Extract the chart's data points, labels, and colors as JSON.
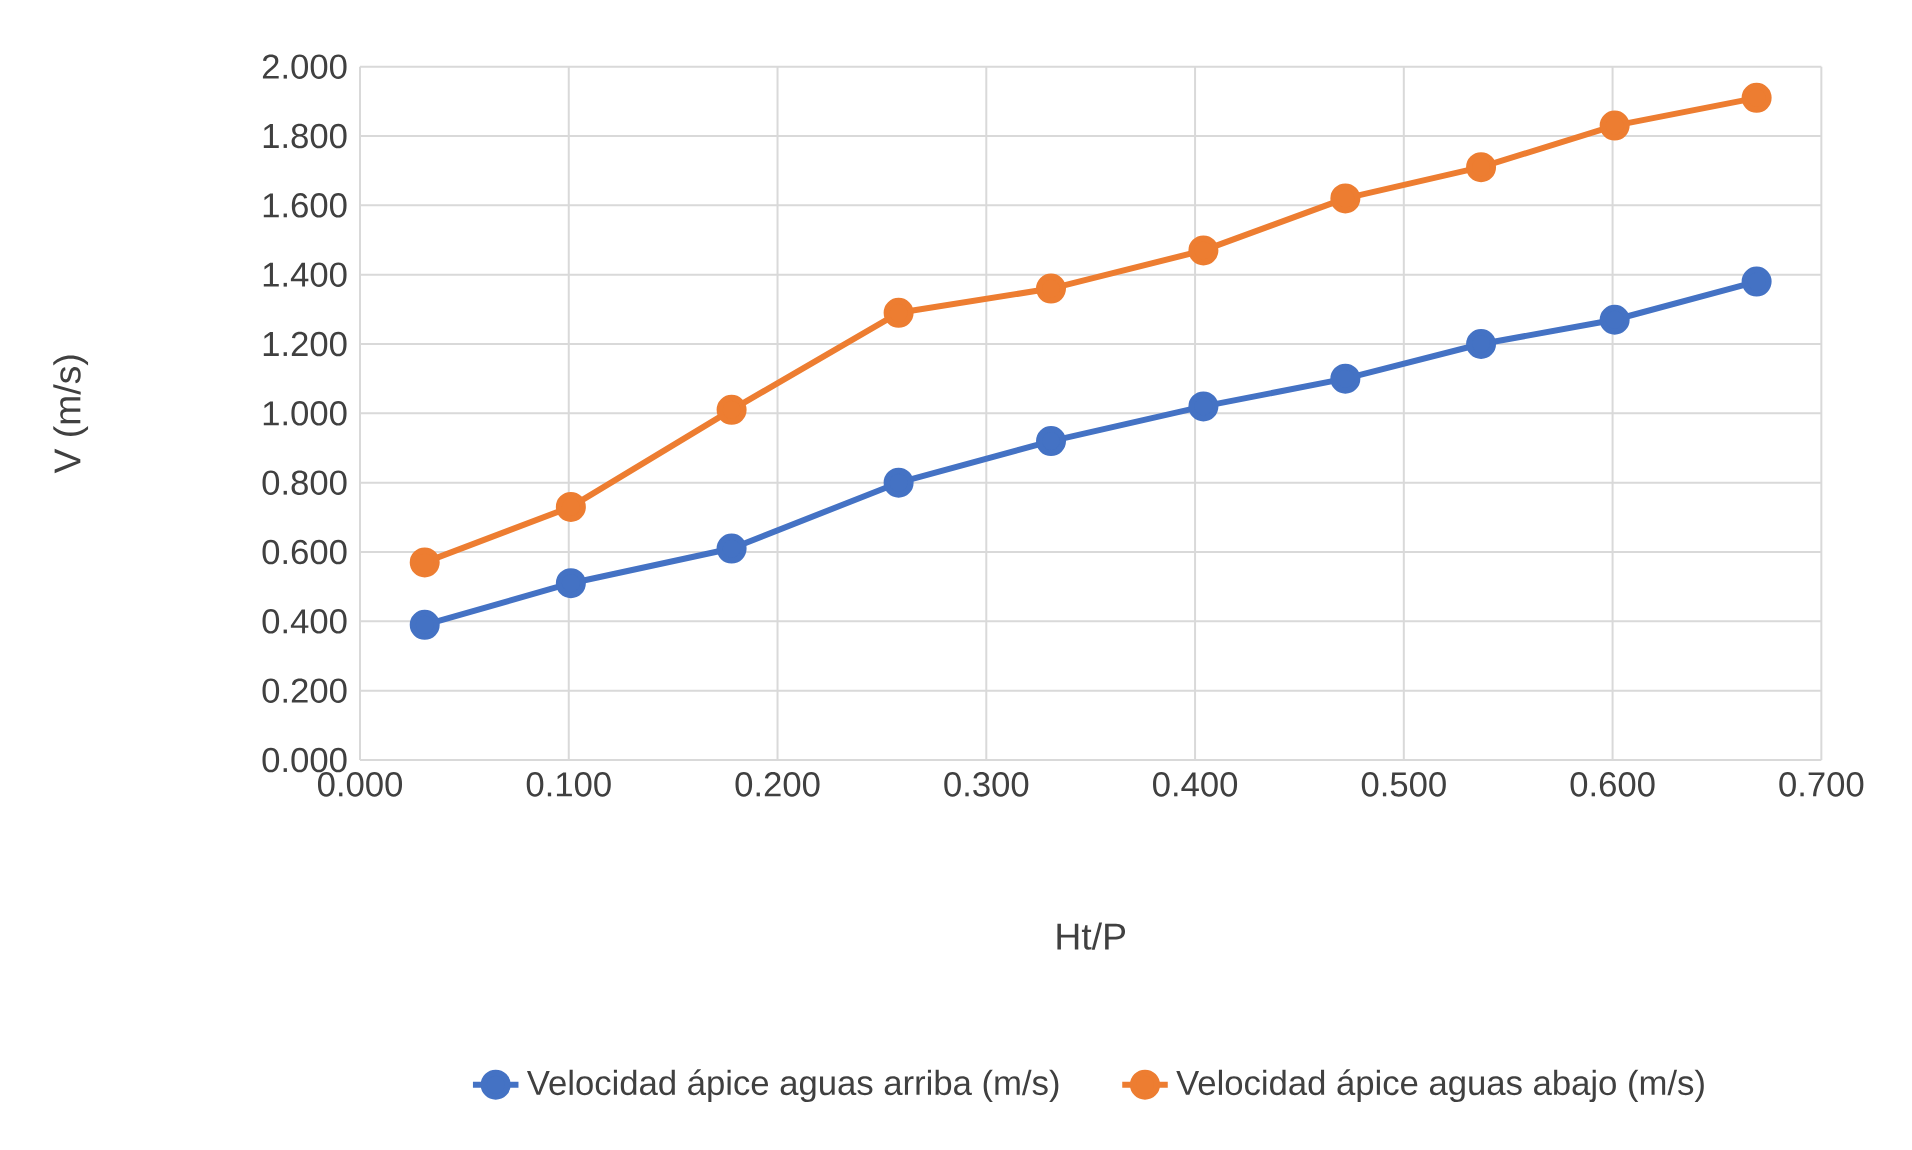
{
  "chart_data": {
    "type": "line",
    "xlabel": "Ht/P",
    "ylabel": "V (m/s)",
    "x": [
      0.031,
      0.101,
      0.178,
      0.258,
      0.331,
      0.404,
      0.472,
      0.537,
      0.601,
      0.669
    ],
    "series": [
      {
        "name": "Velocidad ápice aguas arriba (m/s)",
        "color": "#4472c4",
        "values": [
          0.39,
          0.51,
          0.61,
          0.8,
          0.92,
          1.02,
          1.1,
          1.2,
          1.27,
          1.38
        ]
      },
      {
        "name": "Velocidad ápice aguas abajo (m/s)",
        "color": "#ed7d31",
        "values": [
          0.57,
          0.73,
          1.01,
          1.29,
          1.36,
          1.47,
          1.62,
          1.71,
          1.83,
          1.91
        ]
      }
    ],
    "xlim": [
      0,
      0.7
    ],
    "xticks": [
      {
        "value": 0,
        "label": "0.000"
      },
      {
        "value": 0.1,
        "label": "0.100"
      },
      {
        "value": 0.2,
        "label": "0.200"
      },
      {
        "value": 0.3,
        "label": "0.300"
      },
      {
        "value": 0.4,
        "label": "0.400"
      },
      {
        "value": 0.5,
        "label": "0.500"
      },
      {
        "value": 0.6,
        "label": "0.600"
      },
      {
        "value": 0.7,
        "label": "0.700"
      }
    ],
    "ylim": [
      0,
      2
    ],
    "yticks": [
      {
        "value": 0,
        "label": "0.000"
      },
      {
        "value": 0.2,
        "label": "0.200"
      },
      {
        "value": 0.4,
        "label": "0.400"
      },
      {
        "value": 0.6,
        "label": "0.600"
      },
      {
        "value": 0.8,
        "label": "0.800"
      },
      {
        "value": 1,
        "label": "1.000"
      },
      {
        "value": 1.2,
        "label": "1.200"
      },
      {
        "value": 1.4,
        "label": "1.400"
      },
      {
        "value": 1.6,
        "label": "1.600"
      },
      {
        "value": 1.8,
        "label": "1.800"
      },
      {
        "value": 2,
        "label": "2.000"
      }
    ],
    "grid": true,
    "legend": "bottom",
    "marker": "circle",
    "line_style": "solid"
  }
}
